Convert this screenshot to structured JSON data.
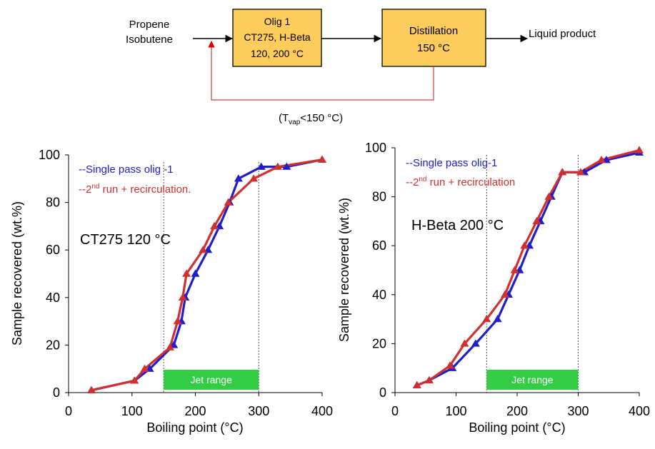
{
  "flow": {
    "feed_line1": "Propene",
    "feed_line2": "Isobutene",
    "reactor_line1": "Olig 1",
    "reactor_line2": "CT275, H-Beta",
    "reactor_line3": "120, 200 °C",
    "distillation_line1": "Distillation",
    "distillation_line2": "150 °C",
    "product": "Liquid product",
    "recycle_prefix": "(T",
    "recycle_sub": "vap",
    "recycle_suffix": "<150 °C)",
    "box_fill": "#fccc5c",
    "recycle_color": "#d04040"
  },
  "chart_data": [
    {
      "type": "line",
      "annotation": "CT275 120 °C",
      "xlabel": "Boiling point (°C)",
      "ylabel": "Sample recovered (wt.%)",
      "xlim": [
        0,
        400
      ],
      "ylim": [
        0,
        100
      ],
      "xticks": [
        0,
        100,
        200,
        300,
        400
      ],
      "yticks": [
        0,
        20,
        40,
        60,
        80,
        100
      ],
      "jet_range": {
        "label": "Jet range",
        "x0": 150,
        "x1": 300,
        "color": "#33cc44"
      },
      "vlines": [
        150,
        300
      ],
      "legend": {
        "placement": "top-left",
        "single_text": "--Single pass olig -1",
        "second_prefix": "--2",
        "second_sup": "nd",
        "second_suffix": " run + recirculation."
      },
      "series": [
        {
          "color": "#2020c8",
          "x": [
            36,
            104,
            128,
            166,
            178,
            184,
            200,
            220,
            238,
            254,
            268,
            304,
            344,
            400
          ],
          "y": [
            1,
            5,
            10,
            20,
            30,
            40,
            50,
            60,
            70,
            80,
            90,
            95,
            95,
            98
          ]
        },
        {
          "color": "#d03030",
          "x": [
            36,
            104,
            120,
            160,
            172,
            180,
            186,
            212,
            230,
            252,
            292,
            330,
            400
          ],
          "y": [
            1,
            5,
            10,
            19,
            30,
            40,
            50,
            60,
            70,
            80,
            90,
            95,
            98
          ]
        }
      ]
    },
    {
      "type": "line",
      "annotation": "H-Beta 200 °C",
      "xlabel": "Boiling point (°C)",
      "ylabel": "Sample recovered (wt.%)",
      "xlim": [
        0,
        400
      ],
      "ylim": [
        0,
        100
      ],
      "xticks": [
        0,
        100,
        200,
        300,
        400
      ],
      "yticks": [
        0,
        20,
        40,
        60,
        80,
        100
      ],
      "jet_range": {
        "label": "Jet range",
        "x0": 150,
        "x1": 300,
        "color": "#33cc44"
      },
      "vlines": [
        150,
        300
      ],
      "legend": {
        "placement": "top-left",
        "single_text": "--Single pass olig-1",
        "second_prefix": "--2",
        "second_sup": "nd",
        "second_suffix": " run + recirculation"
      },
      "series": [
        {
          "color": "#2020c8",
          "x": [
            36,
            56,
            94,
            132,
            168,
            186,
            204,
            220,
            238,
            256,
            274,
            310,
            346,
            400
          ],
          "y": [
            3,
            5,
            10,
            20,
            30,
            40,
            50,
            60,
            70,
            80,
            90,
            90,
            95,
            98
          ]
        },
        {
          "color": "#d03030",
          "x": [
            36,
            56,
            90,
            114,
            150,
            180,
            196,
            212,
            232,
            252,
            274,
            304,
            338,
            400
          ],
          "y": [
            3,
            5,
            11,
            20,
            30,
            40,
            50,
            60,
            70,
            80,
            90,
            90,
            95,
            99
          ]
        }
      ]
    }
  ]
}
